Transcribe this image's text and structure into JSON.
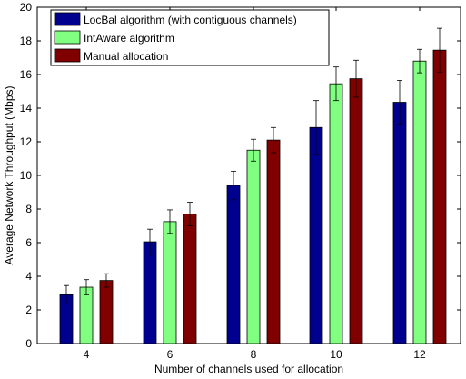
{
  "chart_data": {
    "type": "bar",
    "categories": [
      "4",
      "6",
      "8",
      "10",
      "12"
    ],
    "xlabel": "Number of channels used for allocation",
    "ylabel": "Average Network Throughput (Mbps)",
    "ylim": [
      0,
      20
    ],
    "yticks": [
      0,
      2,
      4,
      6,
      8,
      10,
      12,
      14,
      16,
      18,
      20
    ],
    "legend_position": "top-left",
    "grid": false,
    "error_bars": true,
    "series": [
      {
        "name": "LocBal algorithm (with contiguous channels)",
        "color": "#00008f",
        "values": [
          2.9,
          6.05,
          9.4,
          12.85,
          14.35
        ],
        "errors": [
          0.55,
          0.75,
          0.85,
          1.6,
          1.3
        ]
      },
      {
        "name": "IntAware algorithm",
        "color": "#80ff80",
        "values": [
          3.35,
          7.25,
          11.5,
          15.45,
          16.8
        ],
        "errors": [
          0.45,
          0.7,
          0.65,
          1.0,
          0.7
        ]
      },
      {
        "name": "Manual allocation",
        "color": "#800000",
        "values": [
          3.75,
          7.7,
          12.1,
          15.75,
          17.45
        ],
        "errors": [
          0.4,
          0.7,
          0.75,
          1.1,
          1.3
        ]
      }
    ]
  }
}
